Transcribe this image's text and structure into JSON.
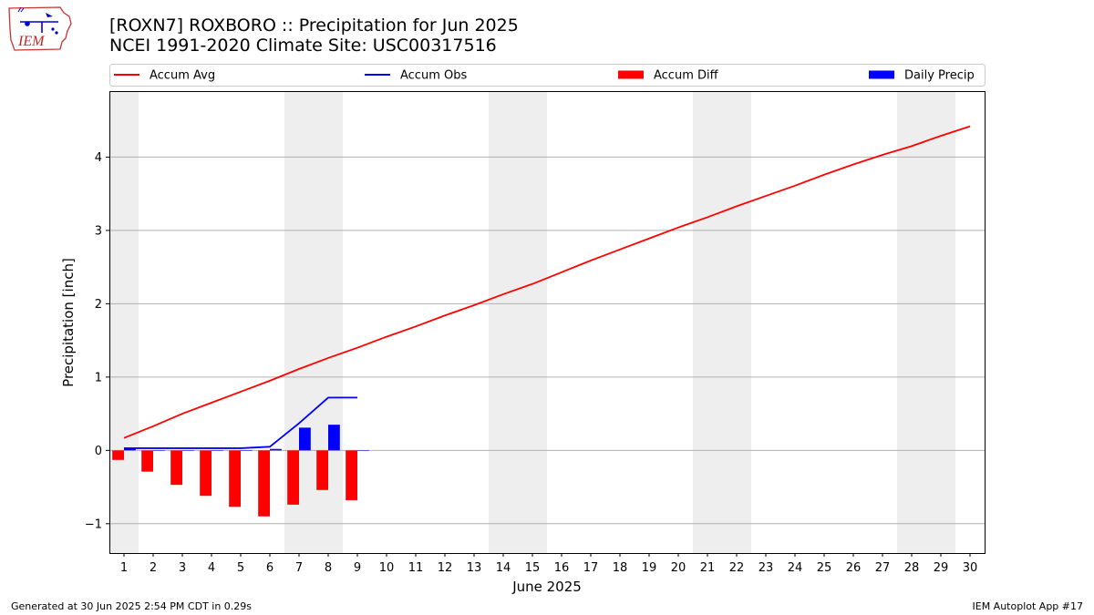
{
  "header": {
    "title_line1": "[ROXN7] ROXBORO :: Precipitation for Jun 2025",
    "title_line2": "NCEI 1991-2020 Climate Site: USC00317516",
    "logo_text": "IEM"
  },
  "footer": {
    "generated": "Generated at 30 Jun 2025 2:54 PM CDT in 0.29s",
    "app": "IEM Autoplot App #17"
  },
  "colors": {
    "avg": "#ff0000",
    "obs": "#0000ff",
    "diff": "#ff0000",
    "daily": "#0000ff",
    "weekend_shade": "#eeeeee",
    "grid": "#b0b0b0"
  },
  "chart_data": {
    "type": "bar+line",
    "xlabel": "June 2025",
    "ylabel": "Precipitation [inch]",
    "x": [
      1,
      2,
      3,
      4,
      5,
      6,
      7,
      8,
      9,
      10,
      11,
      12,
      13,
      14,
      15,
      16,
      17,
      18,
      19,
      20,
      21,
      22,
      23,
      24,
      25,
      26,
      27,
      28,
      29,
      30
    ],
    "xlim": [
      0.5,
      30.5
    ],
    "ylim": [
      -1.4,
      4.9
    ],
    "yticks": [
      -1,
      0,
      1,
      2,
      3,
      4
    ],
    "grid": "horizontal",
    "weekend_days": [
      1,
      7,
      8,
      14,
      15,
      21,
      22,
      28,
      29
    ],
    "legend": {
      "position": "top",
      "entries": [
        "Accum Avg",
        "Accum Obs",
        "Accum Diff",
        "Daily Precip"
      ]
    },
    "series": [
      {
        "name": "Accum Avg",
        "kind": "line",
        "x": [
          1,
          2,
          3,
          4,
          5,
          6,
          7,
          8,
          9,
          10,
          11,
          12,
          13,
          14,
          15,
          16,
          17,
          18,
          19,
          20,
          21,
          22,
          23,
          24,
          25,
          26,
          27,
          28,
          29,
          30
        ],
        "values": [
          0.17,
          0.33,
          0.5,
          0.65,
          0.8,
          0.95,
          1.11,
          1.26,
          1.4,
          1.55,
          1.69,
          1.84,
          1.98,
          2.13,
          2.27,
          2.43,
          2.59,
          2.74,
          2.89,
          3.04,
          3.18,
          3.33,
          3.47,
          3.61,
          3.76,
          3.9,
          4.03,
          4.15,
          4.29,
          4.42
        ]
      },
      {
        "name": "Accum Obs",
        "kind": "line",
        "x": [
          1,
          2,
          3,
          4,
          5,
          6,
          7,
          8,
          9
        ],
        "values": [
          0.03,
          0.03,
          0.03,
          0.03,
          0.03,
          0.05,
          0.37,
          0.72,
          0.72
        ]
      },
      {
        "name": "Accum Diff",
        "kind": "bar",
        "x": [
          1,
          2,
          3,
          4,
          5,
          6,
          7,
          8,
          9
        ],
        "values": [
          -0.13,
          -0.29,
          -0.47,
          -0.62,
          -0.77,
          -0.9,
          -0.74,
          -0.54,
          -0.68
        ]
      },
      {
        "name": "Daily Precip",
        "kind": "bar",
        "x": [
          1,
          2,
          3,
          4,
          5,
          6,
          7,
          8,
          9
        ],
        "values": [
          0.03,
          0,
          0,
          0,
          0,
          0.02,
          0.31,
          0.35,
          0
        ]
      }
    ]
  }
}
